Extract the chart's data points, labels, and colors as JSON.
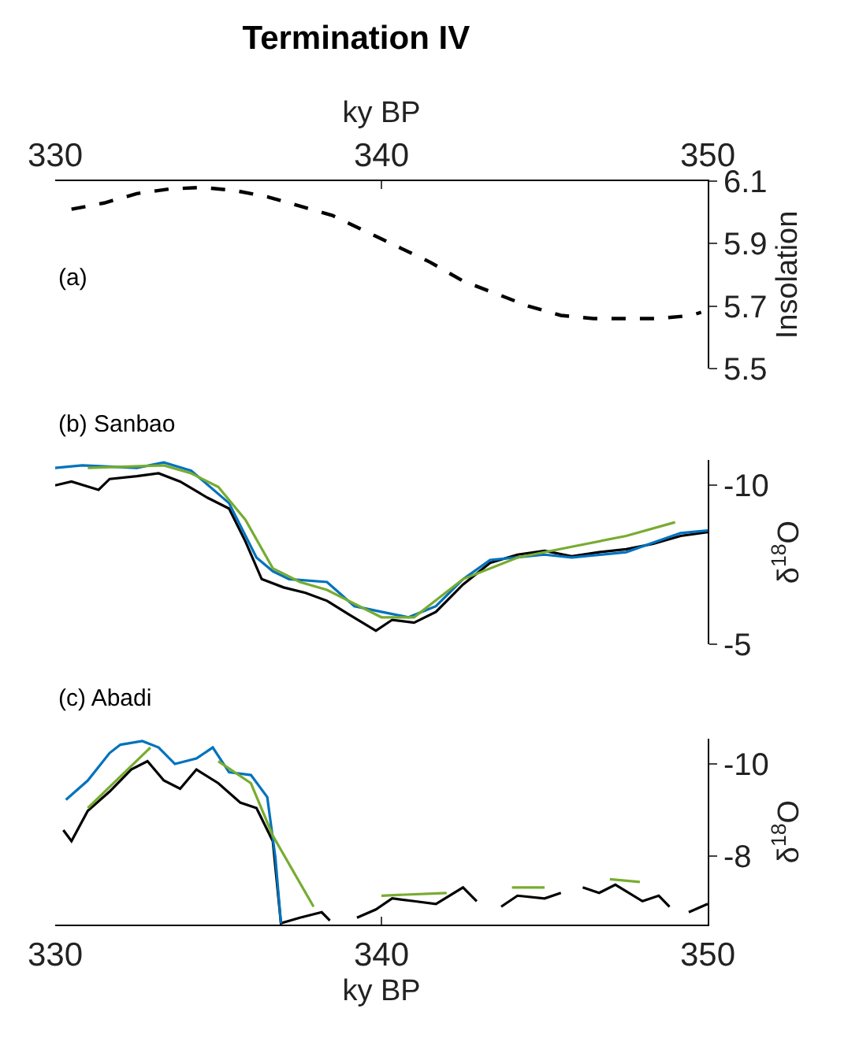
{
  "chart_data": [
    {
      "type": "line",
      "title": "Termination IV",
      "xlabel": "ky BP",
      "ylabel": "Insolation",
      "annotations": [
        "(a)"
      ],
      "xlim": [
        330,
        350
      ],
      "xticks": [
        330,
        340,
        350
      ],
      "ylim": [
        5.5,
        6.1
      ],
      "yticks": [
        5.5,
        5.7,
        5.9,
        6.1
      ],
      "line_style": "dashed",
      "x": [
        330.5,
        331.5,
        332.5,
        333.5,
        334.5,
        335.5,
        336.5,
        337.5,
        338.5,
        339.5,
        340.5,
        341.5,
        342.5,
        343.5,
        344.5,
        345.5,
        346.5,
        347.5,
        348.5,
        349.5,
        349.8
      ],
      "series": [
        {
          "color": "#000000",
          "values": [
            6.01,
            6.03,
            6.06,
            6.075,
            6.08,
            6.07,
            6.05,
            6.02,
            5.99,
            5.94,
            5.89,
            5.84,
            5.78,
            5.74,
            5.7,
            5.67,
            5.66,
            5.66,
            5.66,
            5.67,
            5.68
          ]
        }
      ]
    },
    {
      "type": "line",
      "ylabel": "δ$^{18}$O",
      "annotations": [
        "(b) Sanbao"
      ],
      "xlim": [
        330,
        350
      ],
      "ylim": [
        -5,
        -10.8
      ],
      "yticks": [
        -10,
        -5
      ],
      "tick_labels": "y",
      "series": [
        {
          "color": "#000000",
          "x": [
            330,
            330.5,
            331.33,
            331.67,
            332.5,
            333.17,
            333.83,
            334.67,
            335.33,
            335.83,
            336.33,
            337,
            337.67,
            338.33,
            339,
            339.83,
            340.33,
            341,
            341.67,
            342.5,
            343.33,
            344.17,
            345,
            345.83,
            346.67,
            347.5,
            348.33,
            349.17,
            350
          ],
          "values": [
            -10.0,
            -10.12,
            -9.86,
            -10.2,
            -10.29,
            -10.38,
            -10.12,
            -9.61,
            -9.27,
            -8.24,
            -7.05,
            -6.79,
            -6.62,
            -6.37,
            -5.94,
            -5.43,
            -5.77,
            -5.68,
            -6.02,
            -6.88,
            -7.56,
            -7.82,
            -7.94,
            -7.77,
            -7.9,
            -7.99,
            -8.16,
            -8.41,
            -8.53
          ]
        },
        {
          "color": "#0072bd",
          "x": [
            330,
            330.83,
            332.5,
            333.33,
            334.17,
            335.33,
            336.17,
            336.67,
            337.17,
            338.33,
            339.17,
            340,
            340.83,
            341.67,
            342.5,
            343.33,
            345,
            345.83,
            347.5,
            349.17,
            350
          ],
          "values": [
            -10.55,
            -10.63,
            -10.55,
            -10.72,
            -10.46,
            -9.44,
            -7.73,
            -7.3,
            -7.05,
            -6.96,
            -6.2,
            -6.02,
            -5.85,
            -6.2,
            -7.05,
            -7.65,
            -7.82,
            -7.73,
            -7.9,
            -8.5,
            -8.58
          ]
        },
        {
          "color": "#77ac30",
          "x": [
            331,
            333.33,
            334.17,
            335,
            335.83,
            336.67,
            337.5,
            338.33,
            340,
            341,
            342.5,
            344.17,
            345.83,
            347.5,
            349
          ],
          "values": [
            -10.55,
            -10.63,
            -10.38,
            -9.95,
            -8.92,
            -7.39,
            -6.96,
            -6.71,
            -5.85,
            -5.85,
            -7.05,
            -7.73,
            -8.07,
            -8.41,
            -8.84
          ]
        }
      ]
    },
    {
      "type": "line",
      "xlabel": "ky BP",
      "ylabel": "δ$^{18}$O",
      "annotations": [
        "(c) Abadi"
      ],
      "xlim": [
        330,
        350
      ],
      "xticks": [
        330,
        340,
        350
      ],
      "ylim": [
        -6.5,
        -10.55
      ],
      "yticks": [
        -10,
        -8
      ],
      "series": [
        {
          "color": "#000000",
          "x": [
            330.25,
            330.5,
            331,
            331.67,
            332.33,
            332.83,
            333.33,
            333.83,
            334.33,
            335,
            335.67,
            336.17,
            336.67,
            336.92,
            337.5,
            338.17,
            338.42,
            338.9,
            339.25,
            339.83,
            340.33,
            341,
            341.67,
            342.5,
            342.92,
            343.3,
            343.67,
            344.17,
            345,
            345.5,
            345.8,
            346.17,
            346.67,
            347.17,
            348,
            348.5,
            348.83,
            349.1,
            349.42,
            350
          ],
          "values": [
            -8.56,
            -8.32,
            -8.98,
            -9.4,
            -9.88,
            -10.06,
            -9.64,
            -9.46,
            -9.88,
            -9.58,
            -9.16,
            -9.04,
            -8.32,
            -6.53,
            -6.65,
            -6.77,
            -6.59,
            null,
            -6.65,
            -6.83,
            -7.07,
            -7.01,
            -6.95,
            -7.31,
            -7.01,
            null,
            -6.89,
            -7.13,
            -7.07,
            -7.19,
            null,
            -7.31,
            -7.19,
            -7.37,
            -7.01,
            -7.13,
            -6.89,
            null,
            -6.77,
            -6.95
          ]
        },
        {
          "color": "#0072bd",
          "x": [
            330.33,
            331,
            331.67,
            332,
            332.67,
            333.17,
            333.67,
            334.33,
            334.83,
            335.33,
            336,
            336.5,
            336.75,
            336.92
          ],
          "values": [
            -9.22,
            -9.64,
            -10.24,
            -10.42,
            -10.5,
            -10.36,
            -10.0,
            -10.12,
            -10.36,
            -9.82,
            -9.76,
            -9.28,
            -7.96,
            -6.53
          ]
        },
        {
          "color": "#77ac30",
          "x": [
            331,
            332.92,
            333.5,
            335,
            336,
            336.67,
            337.92,
            339,
            340,
            342,
            343,
            344,
            345,
            346,
            347,
            347.92
          ],
          "values": [
            -9.04,
            -10.36,
            null,
            -10.06,
            -9.58,
            -8.44,
            -6.89,
            null,
            -7.13,
            -7.19,
            null,
            -7.31,
            -7.31,
            null,
            -7.49,
            -7.43
          ]
        }
      ]
    }
  ]
}
